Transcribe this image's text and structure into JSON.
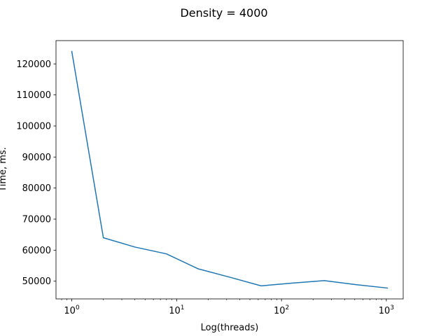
{
  "chart_data": {
    "type": "line",
    "title": "Density = 4000",
    "xlabel": "Log(threads)",
    "ylabel": "Time, ms.",
    "xscale": "log",
    "xlim": [
      0.707,
      1448
    ],
    "ylim": [
      44300,
      127500
    ],
    "x_ticks": [
      {
        "value": 1,
        "label": "10^0",
        "base": "10",
        "exp": "0"
      },
      {
        "value": 10,
        "label": "10^1",
        "base": "10",
        "exp": "1"
      },
      {
        "value": 100,
        "label": "10^2",
        "base": "10",
        "exp": "2"
      },
      {
        "value": 1000,
        "label": "10^3",
        "base": "10",
        "exp": "3"
      }
    ],
    "y_ticks": [
      50000,
      60000,
      70000,
      80000,
      90000,
      100000,
      110000,
      120000
    ],
    "grid": false,
    "series": [
      {
        "color": "#1f77b4",
        "x": [
          1,
          2,
          4,
          8,
          16,
          32,
          64,
          128,
          256,
          512,
          1024
        ],
        "y": [
          124000,
          64000,
          61000,
          58800,
          54000,
          51300,
          48500,
          49400,
          50200,
          48900,
          47800
        ]
      }
    ]
  }
}
